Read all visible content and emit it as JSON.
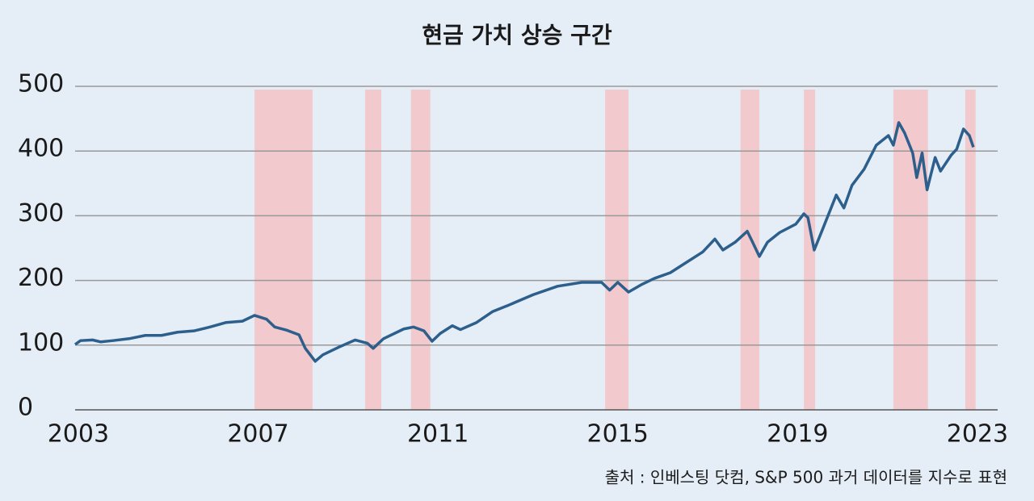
{
  "chart_data": {
    "type": "line",
    "title": "현금 가치 상승 구간",
    "source": "출처 : 인베스팅 닷컴, S&P 500 과거 데이터를 지수로 표현",
    "x": [
      2002.93,
      2003.05,
      2003.32,
      2003.5,
      2003.77,
      2004.13,
      2004.49,
      2004.85,
      2005.21,
      2005.57,
      2005.93,
      2006.29,
      2006.65,
      2006.92,
      2007.19,
      2007.37,
      2007.64,
      2007.91,
      2008.05,
      2008.27,
      2008.44,
      2008.8,
      2009.16,
      2009.43,
      2009.56,
      2009.79,
      2010.24,
      2010.46,
      2010.69,
      2010.87,
      2011.05,
      2011.32,
      2011.5,
      2011.86,
      2012.22,
      2012.58,
      2013.12,
      2013.66,
      2014.2,
      2014.64,
      2014.82,
      2015.0,
      2015.24,
      2015.54,
      2015.81,
      2016.17,
      2016.53,
      2016.89,
      2017.16,
      2017.34,
      2017.61,
      2017.88,
      2018.0,
      2018.15,
      2018.33,
      2018.6,
      2018.96,
      2019.14,
      2019.23,
      2019.37,
      2019.55,
      2019.86,
      2020.03,
      2020.21,
      2020.48,
      2020.75,
      2021.02,
      2021.13,
      2021.25,
      2021.38,
      2021.56,
      2021.65,
      2021.77,
      2021.88,
      2022.06,
      2022.18,
      2022.42,
      2022.54,
      2022.69,
      2022.82,
      2022.91
    ],
    "series": [
      {
        "name": "S&P 500",
        "color": "#2d5f8c",
        "values": [
          101,
          107,
          108,
          105,
          107,
          110,
          115,
          115,
          120,
          122,
          128,
          135,
          137,
          146,
          140,
          128,
          123,
          116,
          95,
          75,
          85,
          97,
          108,
          103,
          95,
          110,
          125,
          128,
          122,
          106,
          118,
          130,
          124,
          135,
          152,
          162,
          178,
          191,
          197,
          197,
          185,
          197,
          182,
          194,
          203,
          212,
          228,
          244,
          264,
          247,
          259,
          276,
          259,
          237,
          259,
          274,
          287,
          303,
          297,
          247,
          278,
          332,
          312,
          347,
          372,
          409,
          424,
          409,
          444,
          428,
          397,
          359,
          397,
          340,
          390,
          369,
          394,
          403,
          434,
          424,
          406
        ]
      }
    ],
    "shaded_periods": [
      [
        2006.92,
        2008.21
      ],
      [
        2009.38,
        2009.74
      ],
      [
        2010.4,
        2010.83
      ],
      [
        2014.72,
        2015.24
      ],
      [
        2017.73,
        2018.15
      ],
      [
        2019.14,
        2019.39
      ],
      [
        2021.13,
        2021.9
      ],
      [
        2022.73,
        2022.96
      ]
    ],
    "shade_color": "#f2c9cc",
    "xlim": [
      2002.93,
      2023.45
    ],
    "xticks": [
      2003,
      2007,
      2011,
      2015,
      2019,
      2023
    ],
    "ylim": [
      0,
      500
    ],
    "yticks": [
      0,
      100,
      200,
      300,
      400,
      500
    ],
    "grid": true
  }
}
